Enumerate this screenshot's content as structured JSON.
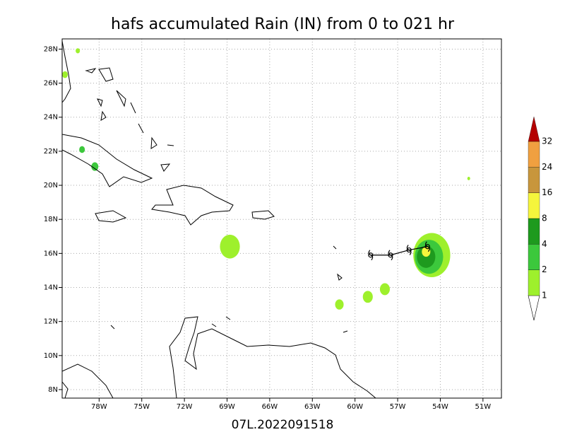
{
  "chart_data": {
    "type": "map",
    "title": "hafs accumulated Rain (IN) from 0 to 021 hr",
    "subtitle": "07L.2022091518",
    "xlim": [
      -80.6,
      -49.7
    ],
    "ylim": [
      7.5,
      28.6
    ],
    "xticks": [
      {
        "value": -78,
        "label": "78W"
      },
      {
        "value": -75,
        "label": "75W"
      },
      {
        "value": -72,
        "label": "72W"
      },
      {
        "value": -69,
        "label": "69W"
      },
      {
        "value": -66,
        "label": "66W"
      },
      {
        "value": -63,
        "label": "63W"
      },
      {
        "value": -60,
        "label": "60W"
      },
      {
        "value": -57,
        "label": "57W"
      },
      {
        "value": -54,
        "label": "54W"
      },
      {
        "value": -51,
        "label": "51W"
      }
    ],
    "yticks": [
      {
        "value": 8,
        "label": "8N"
      },
      {
        "value": 10,
        "label": "10N"
      },
      {
        "value": 12,
        "label": "12N"
      },
      {
        "value": 14,
        "label": "14N"
      },
      {
        "value": 16,
        "label": "16N"
      },
      {
        "value": 18,
        "label": "18N"
      },
      {
        "value": 20,
        "label": "20N"
      },
      {
        "value": 22,
        "label": "22N"
      },
      {
        "value": 24,
        "label": "24N"
      },
      {
        "value": 26,
        "label": "26N"
      },
      {
        "value": 28,
        "label": "28N"
      }
    ],
    "grid": true,
    "colorbar": {
      "levels": [
        1,
        2,
        4,
        8,
        16,
        24,
        32
      ],
      "colors": [
        "#9ef02c",
        "#3cc83c",
        "#1e9a1e",
        "#f5f53c",
        "#c8963c",
        "#f0a040",
        "#b40000"
      ]
    },
    "rain_cells": [
      {
        "lon": -54.6,
        "lat": 15.9,
        "radius": 1.3,
        "value": 1
      },
      {
        "lon": -54.8,
        "lat": 15.8,
        "radius": 1.0,
        "value": 2
      },
      {
        "lon": -55.0,
        "lat": 15.8,
        "radius": 0.65,
        "value": 4
      },
      {
        "lon": -55.0,
        "lat": 16.1,
        "radius": 0.3,
        "value": 8
      },
      {
        "lon": -68.8,
        "lat": 16.4,
        "radius": 0.7,
        "value": 1
      },
      {
        "lon": -61.1,
        "lat": 13.0,
        "radius": 0.3,
        "value": 1
      },
      {
        "lon": -59.1,
        "lat": 13.45,
        "radius": 0.35,
        "value": 1
      },
      {
        "lon": -57.9,
        "lat": 13.9,
        "radius": 0.35,
        "value": 1
      },
      {
        "lon": -78.3,
        "lat": 21.1,
        "radius": 0.25,
        "value": 2
      },
      {
        "lon": -79.2,
        "lat": 22.1,
        "radius": 0.2,
        "value": 2
      },
      {
        "lon": -80.4,
        "lat": 26.5,
        "radius": 0.2,
        "value": 1
      },
      {
        "lon": -79.5,
        "lat": 27.9,
        "radius": 0.15,
        "value": 1
      },
      {
        "lon": -52.0,
        "lat": 20.4,
        "radius": 0.1,
        "value": 1
      }
    ],
    "track": {
      "lon": [
        -58.9,
        -57.5,
        -56.2,
        -54.9
      ],
      "lat": [
        15.9,
        15.9,
        16.2,
        16.4
      ]
    }
  }
}
